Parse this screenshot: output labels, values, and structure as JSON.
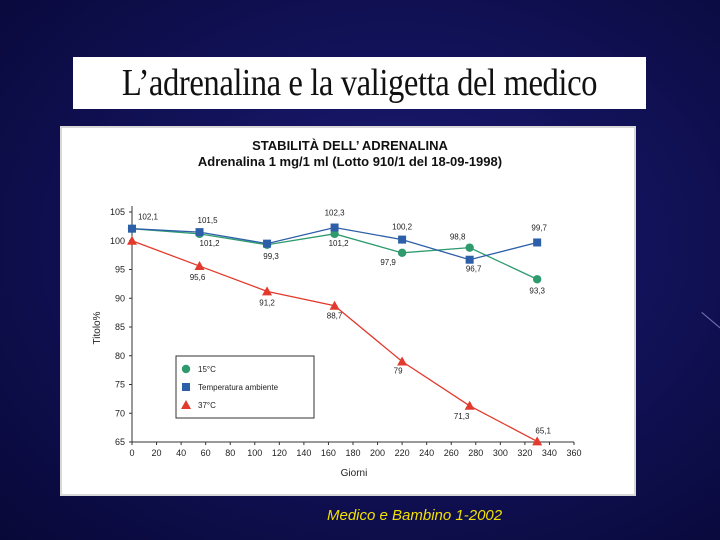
{
  "slide": {
    "title": "L’adrenalina e la valigetta del medico",
    "caption": "Medico e Bambino 1-2002"
  },
  "chart_data": {
    "type": "line",
    "title": "STABILITÀ DELL’ ADRENALINA",
    "subtitle": "Adrenalina 1 mg/1 ml (Lotto 910/1 del 18-09-1998)",
    "xlabel": "Giorni",
    "ylabel": "Titolo%",
    "xlim": [
      0,
      360
    ],
    "ylim": [
      65,
      105
    ],
    "xticks": [
      0,
      20,
      40,
      60,
      80,
      100,
      120,
      140,
      160,
      180,
      200,
      220,
      240,
      260,
      280,
      300,
      320,
      340,
      360
    ],
    "yticks": [
      65,
      70,
      75,
      80,
      85,
      90,
      95,
      100,
      105
    ],
    "grid": false,
    "legend_position": "bottom-left",
    "series": [
      {
        "name": "15°C",
        "color": "#2e9a6e",
        "marker": "circle",
        "x": [
          0,
          55,
          110,
          165,
          220,
          275,
          330
        ],
        "values": [
          102.1,
          101.2,
          99.3,
          101.2,
          97.9,
          98.8,
          93.3
        ],
        "labels": [
          "",
          "101,2",
          "99,3",
          "101,2",
          "97,9",
          "98,8",
          "93,3"
        ]
      },
      {
        "name": "Temperatura ambiente",
        "color": "#2c5fa8",
        "marker": "square",
        "x": [
          0,
          55,
          110,
          165,
          220,
          275,
          330
        ],
        "values": [
          102.1,
          101.5,
          99.5,
          102.3,
          100.2,
          96.7,
          99.7
        ],
        "labels": [
          "102,1",
          "101,5",
          "",
          "102,3",
          "100,2",
          "96,7",
          "99,7"
        ]
      },
      {
        "name": "37°C",
        "color": "#e23a2c",
        "marker": "triangle",
        "x": [
          0,
          55,
          110,
          165,
          220,
          275,
          330
        ],
        "values": [
          100.0,
          95.6,
          91.2,
          88.7,
          79.0,
          71.3,
          65.1
        ],
        "labels": [
          "",
          "95,6",
          "91,2",
          "88,7",
          "79",
          "71,3",
          "65,1"
        ]
      }
    ]
  }
}
